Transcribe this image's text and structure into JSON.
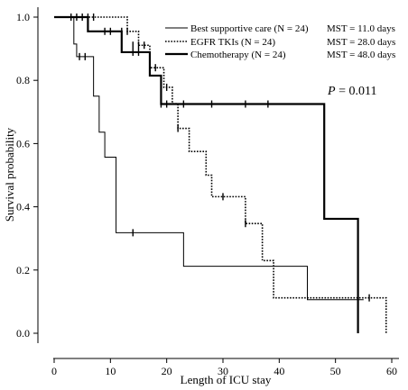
{
  "chart_data": {
    "type": "line",
    "subtype": "kaplan-meier step survival curves",
    "title": "",
    "xlabel": "Length of ICU stay",
    "ylabel": "Survival probability",
    "xlim": [
      0,
      60
    ],
    "ylim": [
      0,
      1
    ],
    "xticks": [
      0,
      10,
      20,
      30,
      40,
      50,
      60
    ],
    "yticks": [
      0.0,
      0.2,
      0.4,
      0.6,
      0.8,
      1.0
    ],
    "ytick_labels": [
      "0.0",
      "0.2",
      "0.4",
      "0.6",
      "0.8",
      "1.0"
    ],
    "grid": false,
    "legend_position": "top-right",
    "annotation": {
      "italic": "P",
      "rest": " = 0.011"
    },
    "series": [
      {
        "name": "Best supportive care (N = 24)",
        "mst": "MST = 11.0 days",
        "style": "thin-solid",
        "steps": [
          [
            0,
            1.0
          ],
          [
            3.5,
            0.915
          ],
          [
            4,
            0.875
          ],
          [
            7,
            0.75
          ],
          [
            7.5,
            0.75
          ],
          [
            8,
            0.636
          ],
          [
            9,
            0.557
          ],
          [
            11,
            0.318
          ],
          [
            23,
            0.212
          ],
          [
            45,
            0.106
          ],
          [
            55,
            0.106
          ]
        ],
        "censored": [
          [
            4.5,
            0.875
          ],
          [
            5.5,
            0.875
          ],
          [
            14,
            0.318
          ]
        ]
      },
      {
        "name": "EGFR TKIs (N = 24)",
        "mst": "MST = 28.0 days",
        "style": "dotted",
        "steps": [
          [
            0,
            1.0
          ],
          [
            13,
            0.955
          ],
          [
            15,
            0.911
          ],
          [
            17,
            0.84
          ],
          [
            19.5,
            0.778
          ],
          [
            20,
            0.778
          ],
          [
            21,
            0.726
          ],
          [
            22,
            0.648
          ],
          [
            24,
            0.575
          ],
          [
            27,
            0.5
          ],
          [
            28,
            0.432
          ],
          [
            34,
            0.347
          ],
          [
            37,
            0.23
          ],
          [
            39,
            0.112
          ],
          [
            59,
            0.112
          ],
          [
            59,
            0.0
          ]
        ],
        "censored": [
          [
            3,
            1.0
          ],
          [
            4,
            1.0
          ],
          [
            5,
            1.0
          ],
          [
            6,
            1.0
          ],
          [
            7,
            1.0
          ],
          [
            12,
            0.955
          ],
          [
            13,
            0.955
          ],
          [
            14,
            0.911
          ],
          [
            15,
            0.911
          ],
          [
            16,
            0.911
          ],
          [
            17,
            0.84
          ],
          [
            18,
            0.84
          ],
          [
            20,
            0.778
          ],
          [
            22,
            0.648
          ],
          [
            30,
            0.432
          ],
          [
            34,
            0.347
          ],
          [
            56,
            0.112
          ]
        ]
      },
      {
        "name": "Chemotherapy (N = 24)",
        "mst": "MST = 48.0 days",
        "style": "thick-solid",
        "steps": [
          [
            0,
            1.0
          ],
          [
            6,
            0.955
          ],
          [
            12,
            0.889
          ],
          [
            17,
            0.815
          ],
          [
            19,
            0.725
          ],
          [
            48,
            0.362
          ],
          [
            54,
            0.362
          ],
          [
            54,
            0.0
          ]
        ],
        "censored": [
          [
            9,
            0.955
          ],
          [
            10,
            0.955
          ],
          [
            14,
            0.889
          ],
          [
            15,
            0.889
          ],
          [
            19,
            0.725
          ],
          [
            20,
            0.725
          ],
          [
            23,
            0.725
          ],
          [
            28,
            0.725
          ],
          [
            34,
            0.725
          ],
          [
            38,
            0.725
          ]
        ]
      }
    ]
  }
}
